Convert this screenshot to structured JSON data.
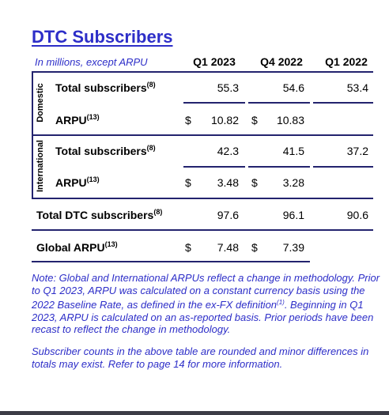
{
  "title": "DTC Subscribers",
  "subtitle": "In millions, except ARPU",
  "columns": [
    "Q1 2023",
    "Q4 2022",
    "Q1 2022"
  ],
  "sections": {
    "domestic": {
      "label": "Domestic",
      "total_label": "Total subscribers",
      "total_sup": "(8)",
      "total_values": [
        "55.3",
        "54.6",
        "53.4"
      ],
      "arpu_label": "ARPU",
      "arpu_sup": "(13)",
      "arpu_values": [
        "10.82",
        "10.83"
      ]
    },
    "international": {
      "label": "International",
      "total_label": "Total subscribers",
      "total_sup": "(8)",
      "total_values": [
        "42.3",
        "41.5",
        "37.2"
      ],
      "arpu_label": "ARPU",
      "arpu_sup": "(13)",
      "arpu_values": [
        "3.48",
        "3.28"
      ]
    }
  },
  "total_dtc": {
    "label": "Total DTC subscribers",
    "sup": "(8)",
    "values": [
      "97.6",
      "96.1",
      "90.6"
    ]
  },
  "global_arpu": {
    "label": "Global ARPU",
    "sup": "(13)",
    "values": [
      "7.48",
      "7.39"
    ]
  },
  "currency": "$",
  "note1_a": "Note: Global and International ARPUs reflect a change in methodology. Prior to Q1 2023, ARPU was calculated on a constant currency basis using the 2022 Baseline Rate, as defined in the ex-FX definition",
  "note1_sup": "(1)",
  "note1_b": ". Beginning in Q1 2023, ARPU is calculated on an as-reported basis. Prior periods have been recast to reflect the change in methodology.",
  "note2": "Subscriber counts in the above table are rounded and minor differences in totals may exist. Refer to page 14 for more information.",
  "colors": {
    "accent": "#2d2ec8",
    "rule": "#23236e"
  }
}
